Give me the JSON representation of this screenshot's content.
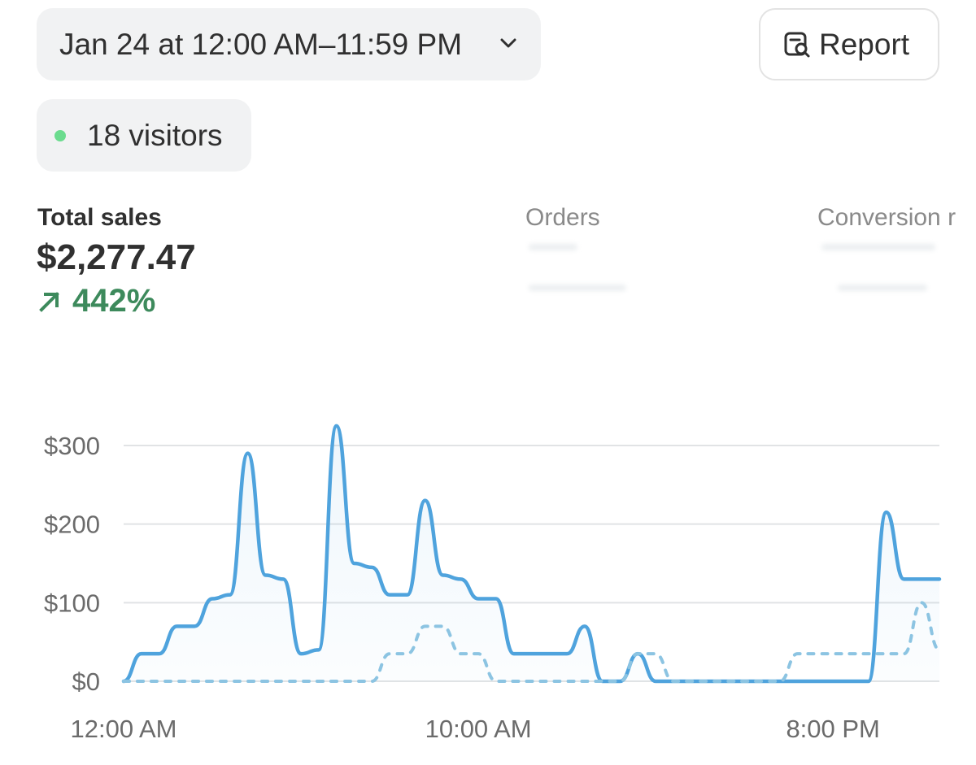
{
  "header": {
    "date_range": "Jan 24 at 12:00 AM–11:59 PM",
    "report_label": "Report"
  },
  "visitors": {
    "label": "18 visitors",
    "dot_color": "#6bdc8e"
  },
  "metrics": {
    "total_sales_label": "Total sales",
    "total_sales_value": "$2,277.47",
    "total_sales_change": "442%",
    "orders_label": "Orders",
    "conversion_label": "Conversion r"
  },
  "chart_data": {
    "type": "line",
    "x_ticks": [
      "12:00 AM",
      "10:00 AM",
      "8:00 PM"
    ],
    "y_ticks": [
      "$0",
      "$100",
      "$200",
      "$300"
    ],
    "ylim": [
      0,
      300
    ],
    "grid": true,
    "series": [
      {
        "style": "solid",
        "color": "#4fa3dd",
        "x": [
          0,
          0.5,
          1,
          1.5,
          2,
          2.5,
          3,
          3.5,
          4,
          4.5,
          5,
          5.5,
          6,
          6.5,
          7,
          7.5,
          8,
          8.5,
          9,
          9.5,
          10,
          10.5,
          11,
          11.5,
          12,
          12.5,
          13,
          13.5,
          14,
          14.5,
          15,
          15.5,
          16,
          16.5,
          17,
          17.5,
          18,
          18.5,
          19,
          19.5,
          20,
          20.5,
          21,
          21.5,
          22,
          22.5,
          23
        ],
        "values": [
          0,
          35,
          35,
          70,
          70,
          105,
          110,
          290,
          135,
          130,
          35,
          40,
          325,
          150,
          145,
          110,
          110,
          230,
          135,
          130,
          105,
          105,
          35,
          35,
          35,
          35,
          70,
          0,
          0,
          35,
          0,
          0,
          0,
          0,
          0,
          0,
          0,
          0,
          0,
          0,
          0,
          0,
          0,
          215,
          130,
          130,
          130
        ]
      },
      {
        "style": "dashed",
        "color": "#8cc4e2",
        "x": [
          0,
          0.5,
          1,
          1.5,
          2,
          2.5,
          3,
          3.5,
          4,
          4.5,
          5,
          5.5,
          6,
          6.5,
          7,
          7.5,
          8,
          8.5,
          9,
          9.5,
          10,
          10.5,
          11,
          11.5,
          12,
          12.5,
          13,
          13.5,
          14,
          14.5,
          15,
          15.5,
          16,
          16.5,
          17,
          17.5,
          18,
          18.5,
          19,
          19.5,
          20,
          20.5,
          21,
          21.5,
          22,
          22.5,
          23
        ],
        "values": [
          0,
          0,
          0,
          0,
          0,
          0,
          0,
          0,
          0,
          0,
          0,
          0,
          0,
          0,
          0,
          35,
          35,
          70,
          70,
          35,
          35,
          0,
          0,
          0,
          0,
          0,
          0,
          0,
          0,
          35,
          35,
          0,
          0,
          0,
          0,
          0,
          0,
          0,
          35,
          35,
          35,
          35,
          35,
          35,
          35,
          100,
          40
        ]
      }
    ]
  }
}
